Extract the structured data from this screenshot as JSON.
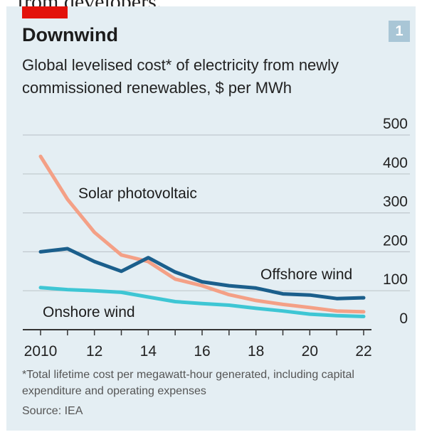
{
  "page": {
    "top_text": "from developers."
  },
  "header": {
    "title": "Downwind",
    "subtitle": "Global levelised cost* of electricity from newly commissioned renewables, $ per MWh",
    "badge": "1"
  },
  "footer": {
    "footnote": "*Total lifetime cost per megawatt-hour generated, including capital expenditure and operating expenses",
    "source": "Source: IEA"
  },
  "colors": {
    "background": "#e4eef3",
    "accent_red": "#e3120b",
    "solar": "#f4a086",
    "offshore": "#1b5f8c",
    "onshore": "#3ec6d4",
    "grid": "#c0c8cd",
    "axis": "#333333"
  },
  "chart_data": {
    "type": "line",
    "title": "Downwind",
    "subtitle": "Global levelised cost* of electricity from newly commissioned renewables, $ per MWh",
    "x": [
      2010,
      2011,
      2012,
      2013,
      2014,
      2015,
      2016,
      2017,
      2018,
      2019,
      2020,
      2021,
      2022
    ],
    "xticks": [
      2010,
      2012,
      2014,
      2016,
      2018,
      2020,
      2022
    ],
    "xtick_labels": [
      "2010",
      "12",
      "14",
      "16",
      "18",
      "20",
      "22"
    ],
    "ylim": [
      0,
      500
    ],
    "yticks": [
      0,
      100,
      200,
      300,
      400,
      500
    ],
    "ytick_labels": [
      "0",
      "100",
      "200",
      "300",
      "400",
      "500"
    ],
    "y_axis_position": "right",
    "grid": true,
    "series": [
      {
        "name": "Solar photovoltaic",
        "color": "#f4a086",
        "values": [
          445,
          335,
          250,
          192,
          175,
          130,
          113,
          90,
          75,
          65,
          57,
          48,
          46
        ]
      },
      {
        "name": "Offshore wind",
        "color": "#1b5f8c",
        "values": [
          200,
          208,
          175,
          150,
          185,
          148,
          123,
          113,
          107,
          92,
          89,
          80,
          82
        ]
      },
      {
        "name": "Onshore wind",
        "color": "#3ec6d4",
        "values": [
          108,
          103,
          100,
          96,
          84,
          72,
          67,
          63,
          55,
          48,
          40,
          36,
          34
        ]
      }
    ]
  }
}
